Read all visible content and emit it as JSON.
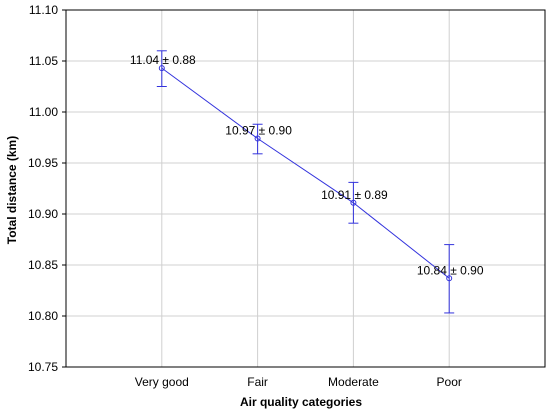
{
  "chart_data": {
    "type": "line",
    "title": "",
    "xlabel": "Air quality categories",
    "ylabel": "Total distance (km)",
    "categories": [
      "Very good",
      "Fair",
      "Moderate",
      "Poor"
    ],
    "series": [
      {
        "values": [
          11.043,
          10.974,
          10.911,
          10.837
        ],
        "error_low": [
          11.025,
          10.959,
          10.891,
          10.803
        ],
        "error_high": [
          11.06,
          10.988,
          10.931,
          10.87
        ],
        "labels": [
          "11.04 ± 0.88",
          "10.97 ± 0.90",
          "10.91 ± 0.89",
          "10.84 ± 0.90"
        ]
      }
    ],
    "ylim": [
      10.75,
      11.1
    ],
    "yticks": [
      "10.75",
      "10.80",
      "10.85",
      "10.90",
      "10.95",
      "11.00",
      "11.05",
      "11.10"
    ],
    "grid": true,
    "colors": {
      "series": "#3333dd",
      "grid": "#d0d0d0",
      "axis": "#000000"
    }
  }
}
